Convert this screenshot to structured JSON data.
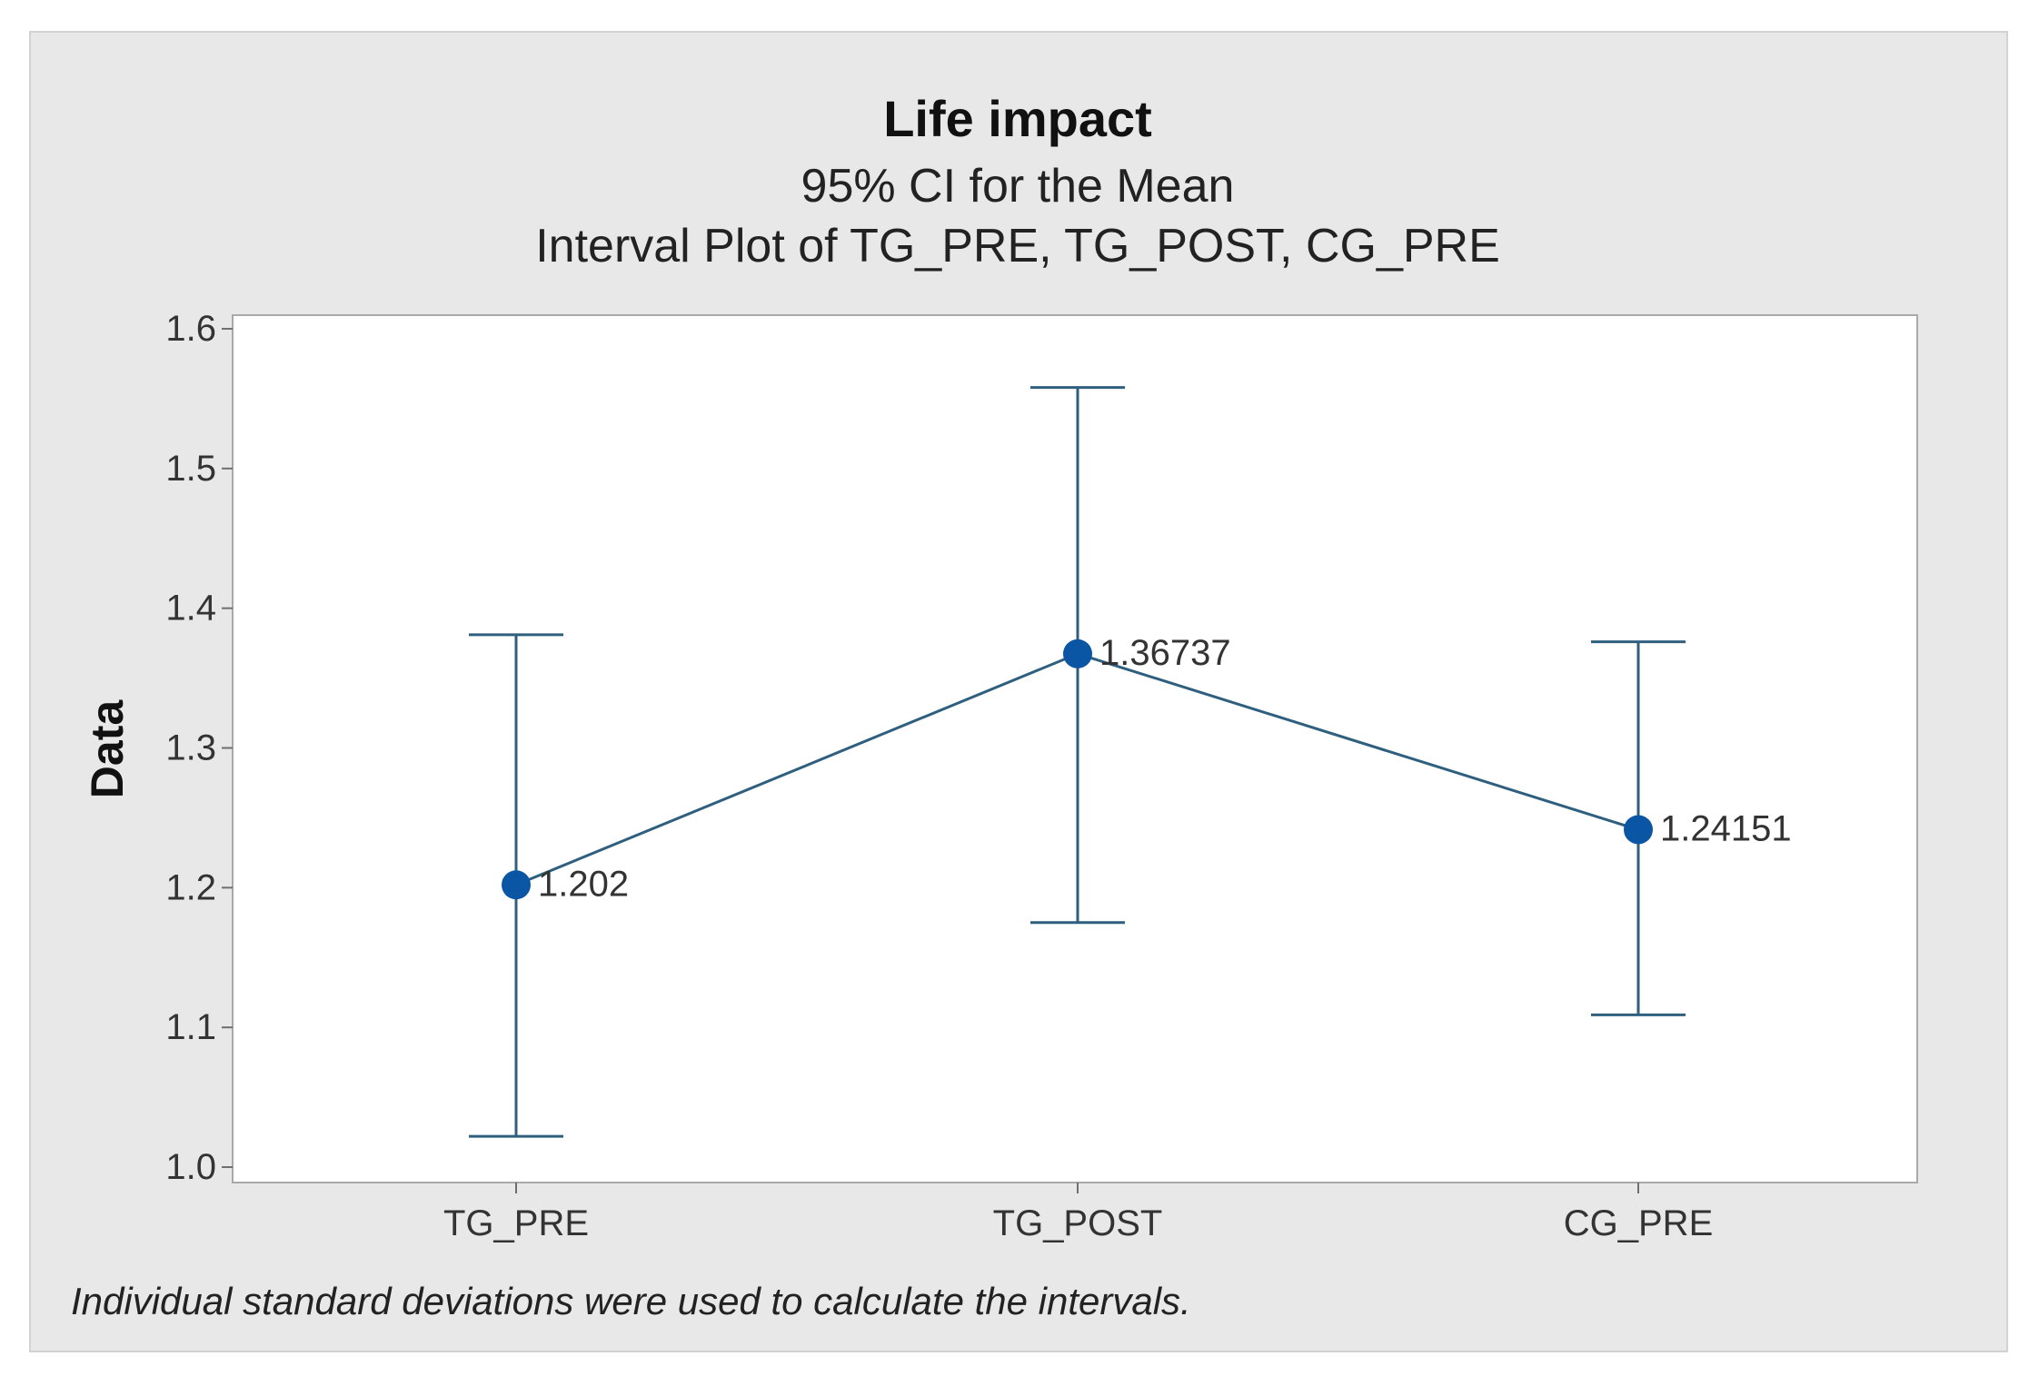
{
  "chart_data": {
    "type": "interval",
    "title": "Life impact",
    "subtitles": [
      "95% CI for the Mean",
      "Interval Plot of TG_PRE, TG_POST, CG_PRE"
    ],
    "ylabel": "Data",
    "xlabel": "",
    "ylim": [
      1.0,
      1.6
    ],
    "yticks": [
      1.0,
      1.1,
      1.2,
      1.3,
      1.4,
      1.5,
      1.6
    ],
    "ytick_labels": [
      "1.0",
      "1.1",
      "1.2",
      "1.3",
      "1.4",
      "1.5",
      "1.6"
    ],
    "categories": [
      "TG_PRE",
      "TG_POST",
      "CG_PRE"
    ],
    "means": [
      1.202,
      1.36737,
      1.24151
    ],
    "mean_labels": [
      "1.202",
      "1.36737",
      "1.24151"
    ],
    "ci_lower": [
      1.022,
      1.175,
      1.109
    ],
    "ci_upper": [
      1.381,
      1.558,
      1.376
    ],
    "grid": false,
    "connect_means": true,
    "colors": {
      "interval": "#2f5f7e",
      "mean_marker": "#0b56a4",
      "plot_bg": "#ffffff",
      "panel_bg": "#e8e8e8"
    },
    "footnote": "Individual standard deviations were used to calculate the intervals."
  }
}
